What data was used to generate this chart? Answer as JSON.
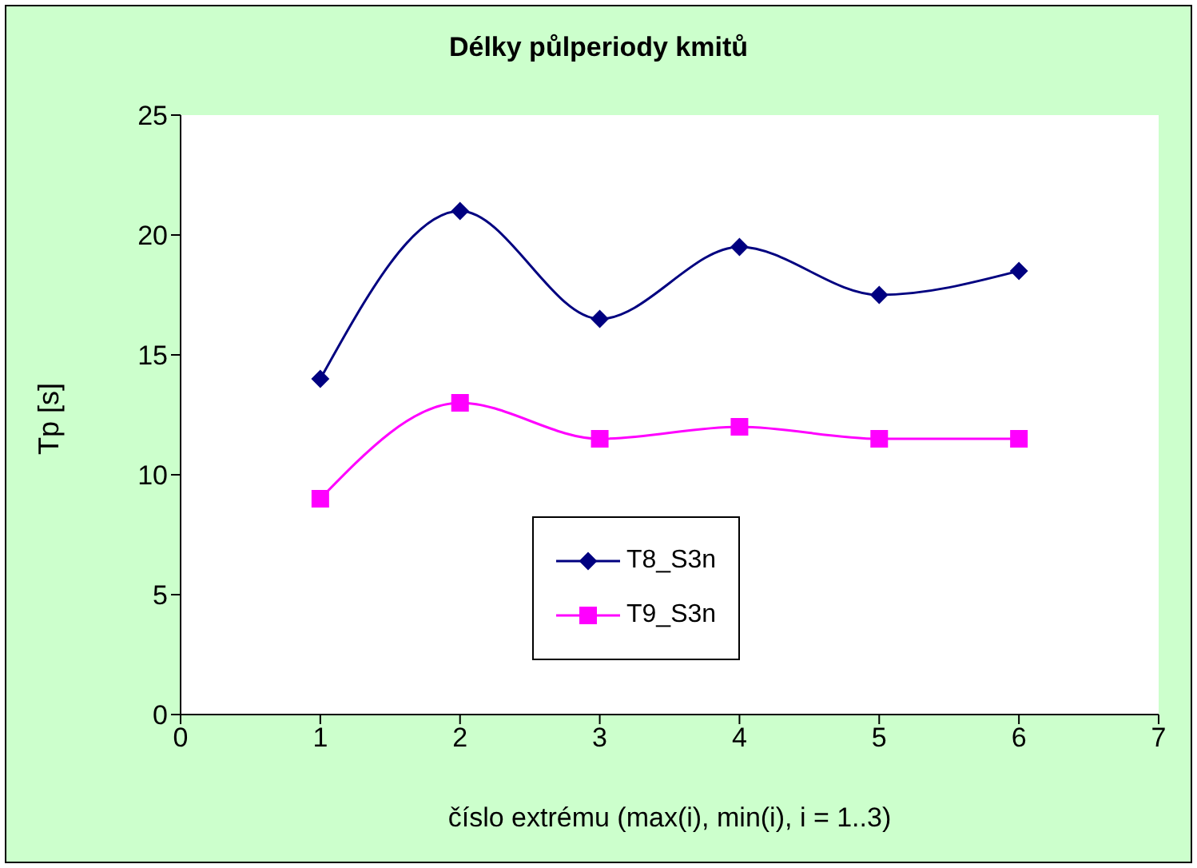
{
  "chart_data": {
    "type": "line",
    "title": "Délky půlperiody kmitů",
    "xlabel": "číslo extrému (max(i), min(i), i = 1..3)",
    "ylabel": "Tp [s]",
    "x": [
      1,
      2,
      3,
      4,
      5,
      6
    ],
    "series": [
      {
        "name": "T8_S3n",
        "color": "#000080",
        "marker": "diamond",
        "values": [
          14,
          21,
          16.5,
          19.5,
          17.5,
          18.5
        ]
      },
      {
        "name": "T9_S3n",
        "color": "#ff00ff",
        "marker": "square",
        "values": [
          9,
          13,
          11.5,
          12,
          11.5,
          11.5
        ]
      }
    ],
    "xlim": [
      0,
      7
    ],
    "xticks": [
      0,
      1,
      2,
      3,
      4,
      5,
      6,
      7
    ],
    "ylim": [
      0,
      25
    ],
    "yticks": [
      0,
      5,
      10,
      15,
      20,
      25
    ],
    "legend": "bottom center"
  }
}
